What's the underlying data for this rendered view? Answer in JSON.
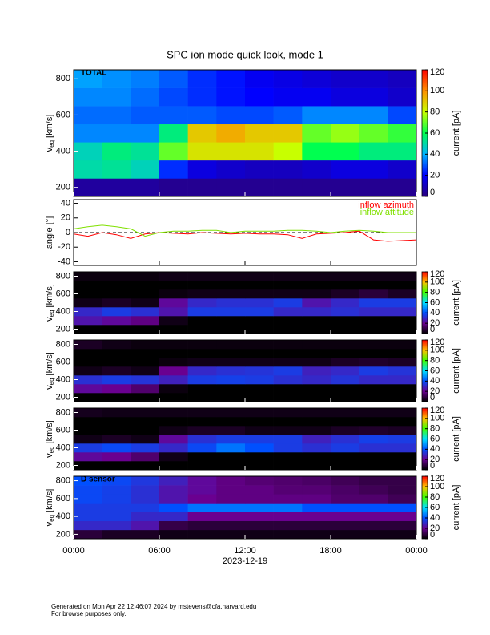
{
  "chart_data": [
    {
      "type": "heatmap",
      "title": "SPC ion mode quick look, mode 1",
      "annotation": "TOTAL",
      "ylabel": "v",
      "ylabel_sub": "eq",
      "ylabel_unit": "[km/s]",
      "ylim": [
        150,
        850
      ],
      "yticks": [
        200,
        400,
        600,
        800
      ],
      "time_edges": [
        0,
        2,
        4,
        6,
        8,
        10,
        12,
        14,
        16,
        18,
        20,
        22,
        24
      ],
      "bin_edges": [
        150,
        250,
        350,
        450,
        550,
        650,
        750,
        850
      ],
      "values": [
        [
          5,
          5,
          5,
          3,
          3,
          3,
          3,
          3,
          3,
          3,
          3,
          3
        ],
        [
          50,
          52,
          48,
          25,
          15,
          12,
          10,
          10,
          12,
          15,
          15,
          12
        ],
        [
          48,
          55,
          52,
          70,
          85,
          85,
          85,
          80,
          60,
          60,
          55,
          55
        ],
        [
          35,
          35,
          35,
          55,
          90,
          95,
          90,
          90,
          70,
          75,
          70,
          65
        ],
        [
          32,
          32,
          30,
          30,
          30,
          28,
          28,
          30,
          35,
          35,
          35,
          28
        ],
        [
          35,
          35,
          32,
          28,
          25,
          22,
          20,
          18,
          18,
          15,
          15,
          12
        ],
        [
          38,
          36,
          34,
          30,
          25,
          22,
          18,
          16,
          14,
          12,
          12,
          10
        ]
      ],
      "clim": [
        0,
        120
      ],
      "cticks": [
        0,
        20,
        40,
        60,
        80,
        100,
        120
      ],
      "clabel": "current [pA]",
      "colormap": [
        "#2a007e",
        "#0000ff",
        "#00b4ff",
        "#00ff50",
        "#c8ff00",
        "#ff9000",
        "#ff0000"
      ]
    },
    {
      "type": "line",
      "ylabel": "angle [°]",
      "ylim": [
        -45,
        45
      ],
      "yticks": [
        -40,
        -20,
        0,
        20,
        40
      ],
      "hline": 0,
      "x": [
        0,
        1,
        2,
        3,
        4,
        5,
        6,
        7,
        8,
        9,
        10,
        11,
        12,
        13,
        14,
        15,
        16,
        17,
        18,
        19,
        20,
        21,
        22,
        23,
        24
      ],
      "series": [
        {
          "name": "inflow azimuth",
          "color": "#ff0000",
          "values": [
            -2,
            -5,
            0,
            -3,
            -8,
            -2,
            0,
            -1,
            -2,
            0,
            -1,
            -2,
            -1,
            -2,
            -2,
            -3,
            -8,
            -2,
            -1,
            0,
            2,
            -10,
            -12,
            -11,
            -10
          ]
        },
        {
          "name": "inflow attitude",
          "color": "#80e000",
          "values": [
            5,
            8,
            10,
            8,
            5,
            -5,
            0,
            2,
            2,
            3,
            3,
            0,
            2,
            2,
            2,
            3,
            3,
            2,
            0,
            2,
            3,
            2,
            0,
            0,
            0
          ]
        }
      ]
    },
    {
      "type": "heatmap",
      "ylabel": "v",
      "ylabel_sub": "eq",
      "ylabel_unit": "[km/s]",
      "ylim": [
        150,
        850
      ],
      "yticks": [
        200,
        400,
        600,
        800
      ],
      "time_edges": [
        0,
        2,
        4,
        6,
        8,
        10,
        12,
        14,
        16,
        18,
        20,
        22,
        24
      ],
      "bin_edges": [
        150,
        250,
        350,
        450,
        550,
        650,
        750,
        850
      ],
      "values": [
        [
          0,
          0,
          0,
          0,
          0,
          0,
          0,
          0,
          0,
          0,
          0,
          0
        ],
        [
          25,
          22,
          18,
          3,
          0,
          0,
          0,
          0,
          0,
          0,
          0,
          0
        ],
        [
          30,
          35,
          32,
          25,
          35,
          35,
          35,
          30,
          30,
          32,
          30,
          30
        ],
        [
          3,
          5,
          3,
          22,
          30,
          32,
          32,
          35,
          25,
          30,
          35,
          35
        ],
        [
          0,
          0,
          0,
          2,
          3,
          3,
          3,
          3,
          3,
          5,
          8,
          5
        ],
        [
          0,
          0,
          0,
          0,
          0,
          0,
          0,
          0,
          0,
          0,
          0,
          0
        ],
        [
          2,
          2,
          2,
          3,
          3,
          3,
          3,
          3,
          3,
          3,
          3,
          3
        ]
      ],
      "clim": [
        0,
        120
      ],
      "cticks": [
        0,
        20,
        40,
        60,
        80,
        100,
        120
      ],
      "clabel": "current [pA]",
      "colormap": [
        "#000000",
        "#6a0090",
        "#0050ff",
        "#00e0ff",
        "#40ff00",
        "#ffc000",
        "#ff0000"
      ]
    },
    {
      "type": "heatmap",
      "ylabel": "v",
      "ylabel_sub": "eq",
      "ylabel_unit": "[km/s]",
      "ylim": [
        150,
        850
      ],
      "yticks": [
        200,
        400,
        600,
        800
      ],
      "time_edges": [
        0,
        2,
        4,
        6,
        8,
        10,
        12,
        14,
        16,
        18,
        20,
        22,
        24
      ],
      "bin_edges": [
        150,
        250,
        350,
        450,
        550,
        650,
        750,
        850
      ],
      "values": [
        [
          0,
          0,
          0,
          0,
          0,
          0,
          0,
          0,
          0,
          0,
          0,
          0
        ],
        [
          22,
          20,
          15,
          2,
          0,
          0,
          0,
          0,
          0,
          0,
          0,
          0
        ],
        [
          32,
          35,
          33,
          28,
          35,
          36,
          35,
          32,
          30,
          33,
          30,
          30
        ],
        [
          3,
          5,
          3,
          20,
          30,
          32,
          33,
          35,
          28,
          30,
          35,
          33
        ],
        [
          0,
          0,
          0,
          2,
          3,
          3,
          3,
          3,
          3,
          5,
          6,
          5
        ],
        [
          0,
          0,
          0,
          0,
          0,
          0,
          0,
          0,
          0,
          0,
          0,
          0
        ],
        [
          5,
          3,
          2,
          2,
          2,
          2,
          2,
          2,
          2,
          2,
          2,
          2
        ]
      ],
      "clim": [
        0,
        120
      ],
      "cticks": [
        0,
        20,
        40,
        60,
        80,
        100,
        120
      ],
      "clabel": "current [pA]",
      "colormap": [
        "#000000",
        "#6a0090",
        "#0050ff",
        "#00e0ff",
        "#40ff00",
        "#ffc000",
        "#ff0000"
      ]
    },
    {
      "type": "heatmap",
      "ylabel": "v",
      "ylabel_sub": "eq",
      "ylabel_unit": "[km/s]",
      "ylim": [
        150,
        850
      ],
      "yticks": [
        200,
        400,
        600,
        800
      ],
      "time_edges": [
        0,
        2,
        4,
        6,
        8,
        10,
        12,
        14,
        16,
        18,
        20,
        22,
        24
      ],
      "bin_edges": [
        150,
        250,
        350,
        450,
        550,
        650,
        750,
        850
      ],
      "values": [
        [
          0,
          0,
          0,
          0,
          0,
          0,
          0,
          0,
          0,
          0,
          0,
          0
        ],
        [
          22,
          20,
          15,
          3,
          0,
          0,
          0,
          0,
          0,
          0,
          0,
          0
        ],
        [
          35,
          38,
          35,
          30,
          38,
          45,
          40,
          35,
          32,
          35,
          32,
          32
        ],
        [
          3,
          5,
          3,
          22,
          32,
          35,
          35,
          35,
          28,
          32,
          36,
          35
        ],
        [
          0,
          0,
          0,
          3,
          5,
          5,
          3,
          3,
          3,
          5,
          6,
          5
        ],
        [
          0,
          0,
          0,
          0,
          0,
          0,
          0,
          0,
          0,
          0,
          0,
          0
        ],
        [
          4,
          3,
          3,
          3,
          3,
          3,
          3,
          3,
          3,
          3,
          3,
          3
        ]
      ],
      "clim": [
        0,
        120
      ],
      "cticks": [
        0,
        20,
        40,
        60,
        80,
        100,
        120
      ],
      "clabel": "current [pA]",
      "colormap": [
        "#000000",
        "#6a0090",
        "#0050ff",
        "#00e0ff",
        "#40ff00",
        "#ffc000",
        "#ff0000"
      ]
    },
    {
      "type": "heatmap",
      "annotation": "D sensor",
      "ylabel": "v",
      "ylabel_sub": "eq",
      "ylabel_unit": "[km/s]",
      "ylim": [
        150,
        850
      ],
      "yticks": [
        200,
        400,
        600,
        800
      ],
      "time_edges": [
        0,
        2,
        4,
        6,
        8,
        10,
        12,
        14,
        16,
        18,
        20,
        22,
        24
      ],
      "bin_edges": [
        150,
        250,
        350,
        450,
        550,
        650,
        750,
        850
      ],
      "values": [
        [
          8,
          5,
          5,
          3,
          3,
          3,
          3,
          3,
          3,
          3,
          3,
          3
        ],
        [
          30,
          30,
          25,
          10,
          8,
          8,
          8,
          8,
          8,
          8,
          8,
          8
        ],
        [
          35,
          35,
          30,
          30,
          20,
          20,
          20,
          20,
          20,
          20,
          20,
          20
        ],
        [
          35,
          35,
          35,
          40,
          45,
          45,
          45,
          45,
          40,
          40,
          40,
          40
        ],
        [
          38,
          36,
          32,
          25,
          20,
          18,
          18,
          18,
          18,
          15,
          15,
          12
        ],
        [
          38,
          36,
          32,
          25,
          22,
          18,
          18,
          16,
          16,
          14,
          12,
          10
        ],
        [
          40,
          38,
          34,
          28,
          22,
          18,
          16,
          15,
          14,
          12,
          10,
          10
        ]
      ],
      "clim": [
        0,
        120
      ],
      "cticks": [
        0,
        20,
        40,
        60,
        80,
        100,
        120
      ],
      "clabel": "current [pA]",
      "colormap": [
        "#000000",
        "#6a0090",
        "#0050ff",
        "#00e0ff",
        "#40ff00",
        "#ffc000",
        "#ff0000"
      ],
      "xlim": [
        0,
        24
      ],
      "xticks": [
        {
          "value": 0,
          "label": "00:00"
        },
        {
          "value": 6,
          "label": "06:00"
        },
        {
          "value": 12,
          "label": "12:00"
        },
        {
          "value": 18,
          "label": "18:00"
        },
        {
          "value": 24,
          "label": "00:00"
        }
      ],
      "xlabel": "2023-12-19"
    }
  ],
  "footer": [
    "Generated on Mon Apr 22 12:46:07 2024 by mstevens@cfa.harvard.edu",
    "For browse purposes only."
  ]
}
